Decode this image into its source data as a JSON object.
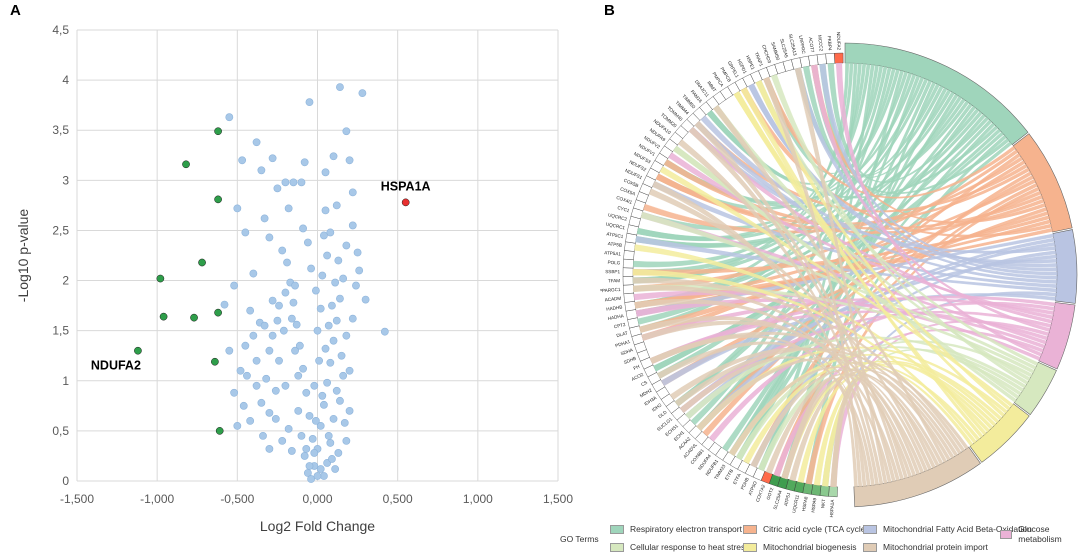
{
  "panel_a_label": "A",
  "panel_b_label": "B",
  "chart_data": [
    {
      "type": "scatter",
      "panel": "A",
      "title": "",
      "xlabel": "Log2 Fold Change",
      "ylabel": "-Log10 p-value",
      "xlim": [
        -1.5,
        1.5
      ],
      "ylim": [
        0,
        4.5
      ],
      "grid": true,
      "x_ticks": [
        "-1,500",
        "-1,000",
        "-0,500",
        "0,000",
        "0,500",
        "1,000",
        "1,500"
      ],
      "x_tick_values": [
        -1.5,
        -1.0,
        -0.5,
        0.0,
        0.5,
        1.0,
        1.5
      ],
      "y_ticks": [
        "0",
        "0,5",
        "1",
        "1,5",
        "2",
        "2,5",
        "3",
        "3,5",
        "4",
        "4,5"
      ],
      "y_tick_values": [
        0,
        0.5,
        1,
        1.5,
        2,
        2.5,
        3,
        3.5,
        4,
        4.5
      ],
      "colors": {
        "not_significant": "#a8c8e8",
        "down": "#2e9e4a",
        "up": "#e83030"
      },
      "annotations": [
        {
          "text": "HSPA1A",
          "x": 0.55,
          "y": 2.78
        },
        {
          "text": "NDUFA2",
          "x": -1.12,
          "y": 1.3
        }
      ],
      "series": [
        {
          "name": "up-regulated",
          "color": "#e83030",
          "points": [
            [
              0.55,
              2.78
            ]
          ]
        },
        {
          "name": "down-regulated",
          "color": "#2e9e4a",
          "points": [
            [
              -1.12,
              1.3
            ],
            [
              -0.98,
              2.02
            ],
            [
              -0.96,
              1.64
            ],
            [
              -0.82,
              3.16
            ],
            [
              -0.77,
              1.63
            ],
            [
              -0.72,
              2.18
            ],
            [
              -0.64,
              1.19
            ],
            [
              -0.62,
              3.49
            ],
            [
              -0.62,
              2.81
            ],
            [
              -0.62,
              1.68
            ],
            [
              -0.61,
              0.5
            ]
          ]
        },
        {
          "name": "not significant",
          "color": "#a8c8e8",
          "points": [
            [
              -0.55,
              3.63
            ],
            [
              -0.5,
              2.72
            ],
            [
              -0.47,
              3.2
            ],
            [
              -0.45,
              2.48
            ],
            [
              -0.38,
              3.38
            ],
            [
              -0.35,
              3.1
            ],
            [
              -0.33,
              2.62
            ],
            [
              -0.3,
              2.43
            ],
            [
              -0.28,
              3.22
            ],
            [
              -0.25,
              2.92
            ],
            [
              -0.2,
              2.98
            ],
            [
              -0.18,
              2.72
            ],
            [
              -0.15,
              2.98
            ],
            [
              -0.1,
              2.98
            ],
            [
              -0.08,
              3.18
            ],
            [
              -0.05,
              3.78
            ],
            [
              0.05,
              3.08
            ],
            [
              0.1,
              3.24
            ],
            [
              0.12,
              2.75
            ],
            [
              0.14,
              3.93
            ],
            [
              0.18,
              3.49
            ],
            [
              0.2,
              3.2
            ],
            [
              0.22,
              2.88
            ],
            [
              0.25,
              2.28
            ],
            [
              0.28,
              3.87
            ],
            [
              0.22,
              2.55
            ],
            [
              0.18,
              2.35
            ],
            [
              0.3,
              1.81
            ],
            [
              0.42,
              1.49
            ],
            [
              0.08,
              2.48
            ],
            [
              0.05,
              2.7
            ],
            [
              -0.22,
              2.3
            ],
            [
              -0.4,
              2.07
            ],
            [
              -0.52,
              1.95
            ],
            [
              -0.58,
              1.76
            ],
            [
              -0.55,
              1.3
            ],
            [
              -0.52,
              0.88
            ],
            [
              -0.48,
              1.1
            ],
            [
              -0.5,
              0.55
            ],
            [
              -0.42,
              0.6
            ],
            [
              -0.35,
              0.78
            ],
            [
              -0.3,
              0.68
            ],
            [
              -0.28,
              1.45
            ],
            [
              -0.36,
              1.58
            ],
            [
              -0.42,
              1.7
            ],
            [
              -0.45,
              1.35
            ],
            [
              -0.38,
              1.2
            ],
            [
              -0.32,
              1.02
            ],
            [
              -0.26,
              0.9
            ],
            [
              -0.24,
              1.75
            ],
            [
              -0.2,
              1.88
            ],
            [
              -0.16,
              1.62
            ],
            [
              -0.14,
              1.3
            ],
            [
              -0.12,
              1.05
            ],
            [
              -0.12,
              0.7
            ],
            [
              -0.1,
              0.45
            ],
            [
              -0.08,
              0.25
            ],
            [
              -0.06,
              0.08
            ],
            [
              -0.04,
              0.02
            ],
            [
              -0.02,
              0.15
            ],
            [
              0.0,
              0.32
            ],
            [
              0.02,
              0.55
            ],
            [
              0.04,
              0.76
            ],
            [
              0.06,
              0.98
            ],
            [
              0.08,
              1.18
            ],
            [
              0.1,
              1.4
            ],
            [
              0.12,
              1.6
            ],
            [
              0.14,
              1.82
            ],
            [
              0.16,
              2.02
            ],
            [
              0.15,
              1.25
            ],
            [
              0.12,
              0.9
            ],
            [
              0.1,
              0.62
            ],
            [
              0.08,
              0.38
            ],
            [
              0.06,
              0.18
            ],
            [
              0.04,
              0.05
            ],
            [
              -0.03,
              0.42
            ],
            [
              -0.05,
              0.65
            ],
            [
              -0.07,
              0.88
            ],
            [
              -0.09,
              1.12
            ],
            [
              -0.11,
              1.35
            ],
            [
              -0.13,
              1.56
            ],
            [
              -0.15,
              1.78
            ],
            [
              -0.17,
              1.98
            ],
            [
              -0.19,
              2.18
            ],
            [
              0.18,
              1.45
            ],
            [
              0.2,
              1.1
            ],
            [
              0.2,
              0.7
            ],
            [
              0.18,
              0.4
            ],
            [
              0.22,
              1.62
            ],
            [
              0.24,
              1.95
            ],
            [
              0.26,
              2.1
            ],
            [
              -0.24,
              1.2
            ],
            [
              -0.26,
              0.62
            ],
            [
              -0.22,
              0.4
            ],
            [
              -0.2,
              0.95
            ],
            [
              -0.18,
              0.52
            ],
            [
              -0.16,
              0.3
            ],
            [
              -0.14,
              1.95
            ],
            [
              0.0,
              1.5
            ],
            [
              0.02,
              1.72
            ],
            [
              -0.01,
              1.9
            ],
            [
              0.03,
              2.05
            ],
            [
              0.01,
              1.2
            ],
            [
              -0.02,
              0.95
            ],
            [
              0.05,
              1.32
            ],
            [
              0.07,
              1.55
            ],
            [
              0.09,
              1.75
            ],
            [
              0.11,
              1.98
            ],
            [
              0.06,
              2.25
            ],
            [
              -0.06,
              2.38
            ],
            [
              -0.04,
              2.12
            ],
            [
              0.04,
              2.45
            ],
            [
              0.13,
              2.2
            ],
            [
              -0.09,
              2.52
            ],
            [
              -0.3,
              1.3
            ],
            [
              -0.33,
              1.55
            ],
            [
              -0.28,
              1.8
            ],
            [
              -0.4,
              1.45
            ],
            [
              -0.44,
              1.05
            ],
            [
              -0.46,
              0.75
            ],
            [
              -0.38,
              0.95
            ],
            [
              -0.34,
              0.45
            ],
            [
              -0.3,
              0.32
            ],
            [
              -0.25,
              1.6
            ],
            [
              -0.21,
              1.5
            ],
            [
              0.16,
              1.05
            ],
            [
              0.14,
              0.8
            ],
            [
              0.17,
              0.58
            ],
            [
              0.13,
              0.28
            ],
            [
              0.11,
              0.12
            ],
            [
              -0.07,
              0.32
            ],
            [
              -0.01,
              0.6
            ],
            [
              0.03,
              0.85
            ],
            [
              0.0,
              0.05
            ],
            [
              0.02,
              0.12
            ],
            [
              -0.02,
              0.28
            ],
            [
              0.07,
              0.45
            ],
            [
              -0.05,
              0.15
            ],
            [
              0.09,
              0.22
            ]
          ]
        }
      ]
    },
    {
      "type": "chord",
      "panel": "B",
      "legend_title": "GO Terms",
      "go_terms": [
        {
          "name": "Respiratory electron transport",
          "color": "#9fd5bb",
          "genes": 28
        },
        {
          "name": "Citric acid cycle (TCA cycle)",
          "color": "#f6b38e",
          "genes": 14
        },
        {
          "name": "Mitochondrial Fatty Acid Beta-Oxidation",
          "color": "#b9c4e2",
          "genes": 10
        },
        {
          "name": "Glucose metabolism",
          "color": "#eab2d6",
          "genes": 9
        },
        {
          "name": "Cellular response to heat stress",
          "color": "#d6e8bf",
          "genes": 7
        },
        {
          "name": "Mitochondrial biogenesis",
          "color": "#f3ec9c",
          "genes": 9
        },
        {
          "name": "Mitochondrial protein import",
          "color": "#e0ccb6",
          "genes": 18
        }
      ],
      "genes": [
        "HSPA1A",
        "NKT",
        "HSPA9",
        "HSPA8",
        "UQCR11",
        "ATP5J",
        "SLC25A4",
        "GOT2",
        "COX7A2",
        "ATP5O",
        "PDHB",
        "ETFA",
        "ETFB",
        "TIMM23",
        "NDUFB1",
        "NDUFA4",
        "COX6B1",
        "ACADVL",
        "ACAA2",
        "ECH1",
        "ECHS1",
        "SUCLG1",
        "DLD",
        "IDH2",
        "IDH3A",
        "MDH2",
        "CS",
        "ACO2",
        "FH",
        "SDHB",
        "SDHA",
        "PDHA1",
        "DLAT",
        "CPT2",
        "HADHA",
        "HADHB",
        "ACADM",
        "PPARGC1",
        "TFAM",
        "SSBP1",
        "POLG",
        "ATP5A1",
        "ATP5B",
        "ATP5C1",
        "UQCRC1",
        "UQCRC2",
        "CYC1",
        "COX4I1",
        "COX5A",
        "COX5B",
        "NDUFS1",
        "NDUFS2",
        "NDUFS3",
        "NDUFV1",
        "NDUFV2",
        "NDUFA9",
        "NDUFA10",
        "TOMM20",
        "TOMM40",
        "TIMM44",
        "TIMM50",
        "PAM16",
        "DNAJC11",
        "IMMT",
        "PMPCA",
        "PMPCB",
        "GRPEL1",
        "HSPD1",
        "HSPE1",
        "TRAP1",
        "CHCHD3",
        "SAMM50",
        "SLC25A5",
        "SLC25A13",
        "LRPPRC",
        "ACOT7",
        "MCCC2",
        "FKBP4",
        "NDUFA2"
      ],
      "fc_strip": [
        "#ff6a4a",
        "#3f9d4f",
        "#3f9d4f",
        "#52a95c",
        "#52a95c",
        "#6cb773",
        "#6cb773",
        "#8ac98f",
        "#a9d8ab"
      ]
    }
  ]
}
